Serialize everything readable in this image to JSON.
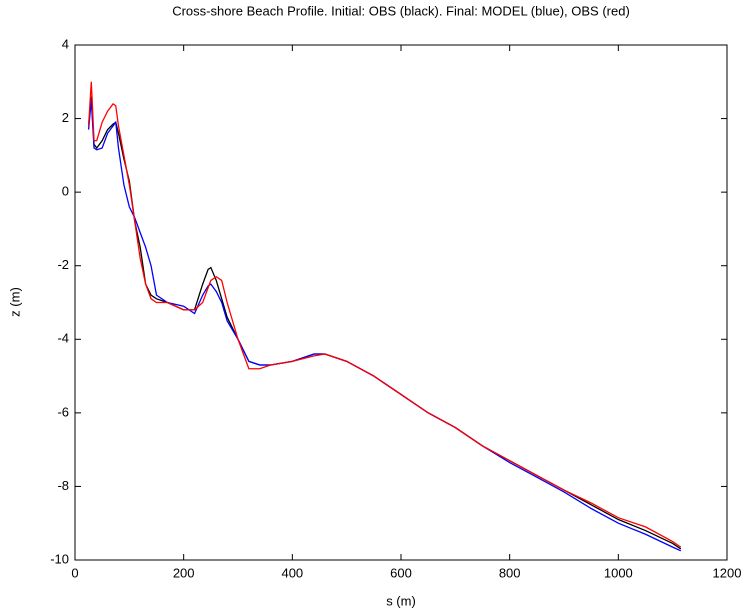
{
  "chart_data": {
    "type": "line",
    "title": "Cross-shore Beach Profile. Initial: OBS (black). Final: MODEL (blue), OBS (red)",
    "x_label": "s (m)",
    "y_label": "z (m)",
    "x": [
      25,
      30,
      35,
      40,
      50,
      60,
      70,
      75,
      80,
      90,
      100,
      110,
      120,
      130,
      140,
      150,
      170,
      200,
      220,
      235,
      245,
      250,
      260,
      270,
      280,
      300,
      320,
      340,
      360,
      400,
      440,
      460,
      500,
      550,
      600,
      650,
      700,
      750,
      800,
      850,
      900,
      950,
      1000,
      1050,
      1100,
      1115
    ],
    "series": [
      {
        "color": "#000000",
        "values": [
          1.8,
          2.6,
          1.3,
          1.2,
          1.4,
          1.7,
          1.85,
          1.9,
          1.6,
          0.9,
          0.3,
          -0.8,
          -1.5,
          -2.5,
          -2.8,
          -2.9,
          -3.0,
          -3.2,
          -3.2,
          -2.5,
          -2.1,
          -2.05,
          -2.4,
          -2.9,
          -3.4,
          -4.0,
          -4.6,
          -4.7,
          -4.7,
          -4.6,
          -4.4,
          -4.4,
          -4.6,
          -5.0,
          -5.5,
          -6.0,
          -6.4,
          -6.9,
          -7.3,
          -7.7,
          -8.1,
          -8.5,
          -8.9,
          -9.2,
          -9.55,
          -9.7
        ]
      },
      {
        "color": "#0000ff",
        "values": [
          1.7,
          2.5,
          1.2,
          1.15,
          1.2,
          1.6,
          1.8,
          1.9,
          1.2,
          0.2,
          -0.4,
          -0.7,
          -1.1,
          -1.5,
          -2.0,
          -2.8,
          -3.0,
          -3.1,
          -3.3,
          -2.8,
          -2.55,
          -2.5,
          -2.7,
          -3.0,
          -3.5,
          -4.0,
          -4.6,
          -4.7,
          -4.7,
          -4.6,
          -4.4,
          -4.4,
          -4.6,
          -5.0,
          -5.5,
          -6.0,
          -6.4,
          -6.9,
          -7.35,
          -7.75,
          -8.15,
          -8.6,
          -9.0,
          -9.3,
          -9.65,
          -9.75
        ]
      },
      {
        "color": "#ff0000",
        "values": [
          1.8,
          3.0,
          1.4,
          1.4,
          1.9,
          2.2,
          2.4,
          2.35,
          1.8,
          1.0,
          0.2,
          -0.8,
          -1.8,
          -2.5,
          -2.9,
          -3.0,
          -3.0,
          -3.2,
          -3.2,
          -3.0,
          -2.6,
          -2.4,
          -2.3,
          -2.4,
          -3.0,
          -4.0,
          -4.8,
          -4.8,
          -4.7,
          -4.6,
          -4.45,
          -4.4,
          -4.6,
          -5.0,
          -5.5,
          -6.0,
          -6.4,
          -6.9,
          -7.3,
          -7.7,
          -8.1,
          -8.45,
          -8.85,
          -9.1,
          -9.5,
          -9.65
        ]
      }
    ],
    "xlim": [
      0,
      1200
    ],
    "xticks": [
      0,
      200,
      400,
      600,
      800,
      1000,
      1200
    ],
    "ylim": [
      -10,
      4
    ],
    "yticks": [
      -10,
      -8,
      -6,
      -4,
      -2,
      0,
      2,
      4
    ]
  }
}
